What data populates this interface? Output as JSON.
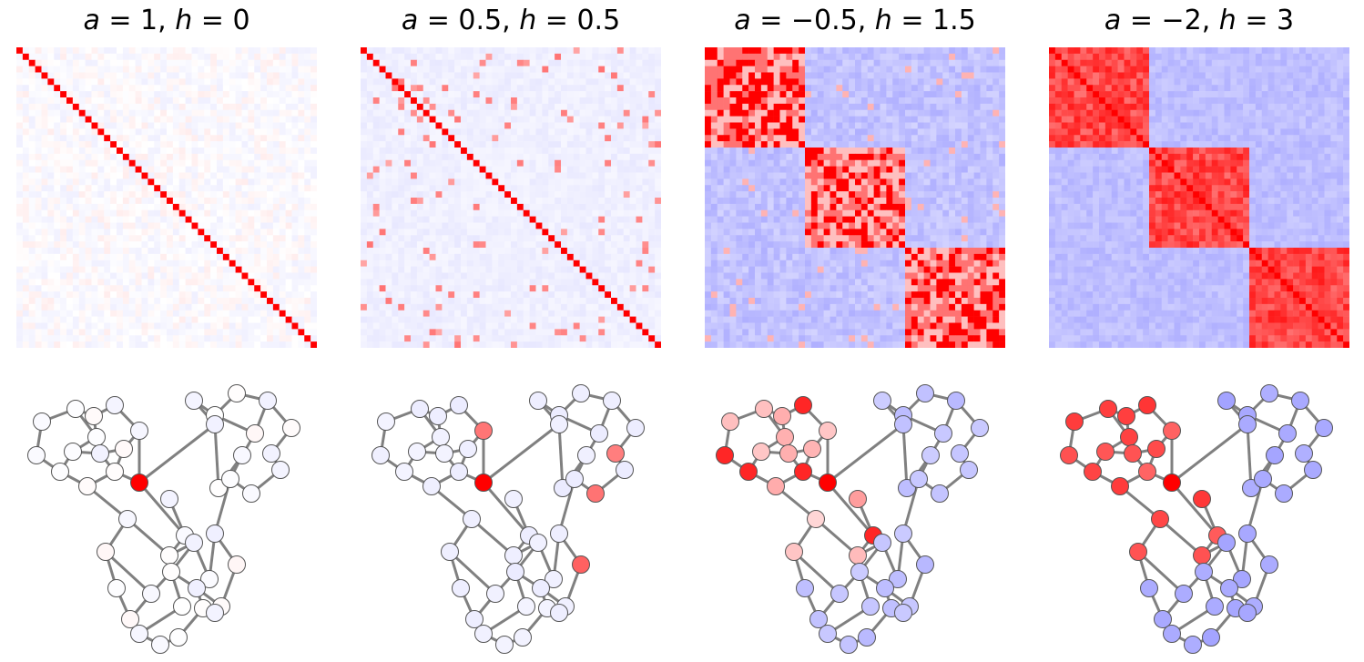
{
  "chart_data": [
    {
      "type": "heatmap",
      "title": "a = 1, h = 0",
      "params": {
        "a": 1,
        "h": 0
      },
      "matrix_size": 48,
      "structure": "near-identity: strong positive diagonal, very weak off-diagonal values",
      "colormap": "bwr (blue negative, white zero, red positive)",
      "graph": {
        "n_nodes": 48,
        "max_node": 13,
        "node_color_scale": "same bwr colormap, centered on highlighted node"
      }
    },
    {
      "type": "heatmap",
      "title": "a = 0.5, h = 0.5",
      "params": {
        "a": 0.5,
        "h": 0.5
      },
      "matrix_size": 48,
      "structure": "diagonal plus sparse positive entries for graph neighbours",
      "colormap": "bwr",
      "graph": {
        "n_nodes": 48,
        "max_node": 13
      }
    },
    {
      "type": "heatmap",
      "title": "a = −0.5, h = 1.5",
      "params": {
        "a": -0.5,
        "h": 1.5
      },
      "matrix_size": 48,
      "structure": "three diagonal blocks, strong positive within blocks, negative across blocks",
      "colormap": "bwr",
      "graph": {
        "n_nodes": 48,
        "max_node": 13
      }
    },
    {
      "type": "heatmap",
      "title": "a = −2, h = 3",
      "params": {
        "a": -2,
        "h": 3
      },
      "matrix_size": 48,
      "structure": "three dense diagonal blocks, uniformly positive within blocks, negative across blocks",
      "colormap": "bwr",
      "graph": {
        "n_nodes": 48,
        "max_node": 13
      }
    }
  ],
  "colors": {
    "positive": "#ff0000",
    "neutral": "#ffffff",
    "negative": "#6f6fff",
    "edge": "#808080",
    "node_outline": "#555555"
  }
}
